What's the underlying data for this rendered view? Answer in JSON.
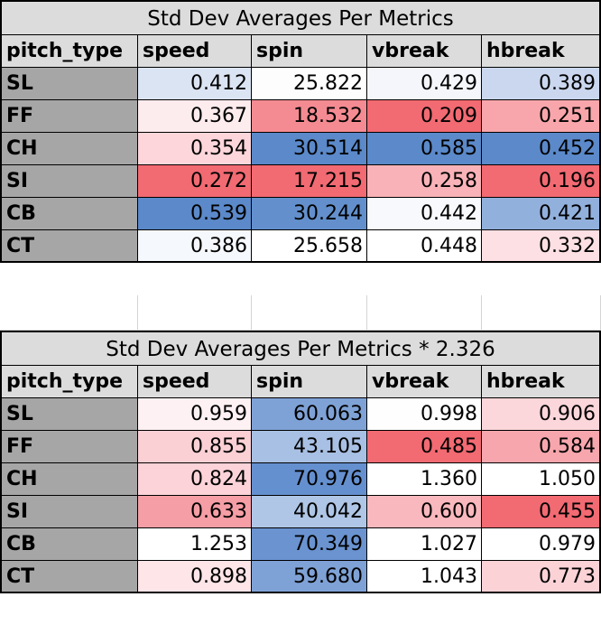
{
  "tables": [
    {
      "title": "Std Dev Averages Per Metrics",
      "headers": [
        "pitch_type",
        "speed",
        "spin",
        "vbreak",
        "hbreak"
      ],
      "rows": [
        {
          "label": "SL",
          "values": [
            "0.412",
            "25.822",
            "0.429",
            "0.389"
          ],
          "colors": [
            "#dbe4f3",
            "#fdfdfe",
            "#f4f6fb",
            "#cad7ee"
          ]
        },
        {
          "label": "FF",
          "values": [
            "0.367",
            "18.532",
            "0.209",
            "0.251"
          ],
          "colors": [
            "#fdecee",
            "#f58b92",
            "#f26a72",
            "#f8a6ab"
          ]
        },
        {
          "label": "CH",
          "values": [
            "0.354",
            "30.514",
            "0.585",
            "0.452"
          ],
          "colors": [
            "#fcd6da",
            "#5b89c9",
            "#5b89c9",
            "#5b89c9"
          ]
        },
        {
          "label": "SI",
          "values": [
            "0.272",
            "17.215",
            "0.258",
            "0.196"
          ],
          "colors": [
            "#f26a72",
            "#f26a72",
            "#f9b3b8",
            "#f26a72"
          ]
        },
        {
          "label": "CB",
          "values": [
            "0.539",
            "30.244",
            "0.442",
            "0.421"
          ],
          "colors": [
            "#5b89c9",
            "#6390cc",
            "#f7f9fc",
            "#92b0dc"
          ]
        },
        {
          "label": "CT",
          "values": [
            "0.386",
            "25.658",
            "0.448",
            "0.332"
          ],
          "colors": [
            "#f5f8fc",
            "#ffffff",
            "#ffffff",
            "#fce0e3"
          ]
        }
      ]
    },
    {
      "title": "Std Dev Averages Per Metrics * 2.326",
      "headers": [
        "pitch_type",
        "speed",
        "spin",
        "vbreak",
        "hbreak"
      ],
      "rows": [
        {
          "label": "SL",
          "values": [
            "0.959",
            "60.063",
            "0.998",
            "0.906"
          ],
          "colors": [
            "#fdf1f3",
            "#7fa2d6",
            "#fefefe",
            "#fbd6da"
          ]
        },
        {
          "label": "FF",
          "values": [
            "0.855",
            "43.105",
            "0.485",
            "0.584"
          ],
          "colors": [
            "#fbd0d5",
            "#a8c0e3",
            "#f26a72",
            "#f7a6ad"
          ]
        },
        {
          "label": "CH",
          "values": [
            "0.824",
            "70.976",
            "1.360",
            "1.050"
          ],
          "colors": [
            "#fbd3d8",
            "#6590cf",
            "#ffffff",
            "#ffffff"
          ]
        },
        {
          "label": "SI",
          "values": [
            "0.633",
            "40.042",
            "0.600",
            "0.455"
          ],
          "colors": [
            "#f59ea5",
            "#afc6e6",
            "#f9b8bd",
            "#f26a72"
          ]
        },
        {
          "label": "CB",
          "values": [
            "1.253",
            "70.349",
            "1.027",
            "0.979"
          ],
          "colors": [
            "#ffffff",
            "#6a93d0",
            "#ffffff",
            "#ffffff"
          ]
        },
        {
          "label": "CT",
          "values": [
            "0.898",
            "59.680",
            "1.043",
            "0.773"
          ],
          "colors": [
            "#fde5e8",
            "#7fa2d6",
            "#ffffff",
            "#fbd2d6"
          ]
        }
      ]
    }
  ]
}
